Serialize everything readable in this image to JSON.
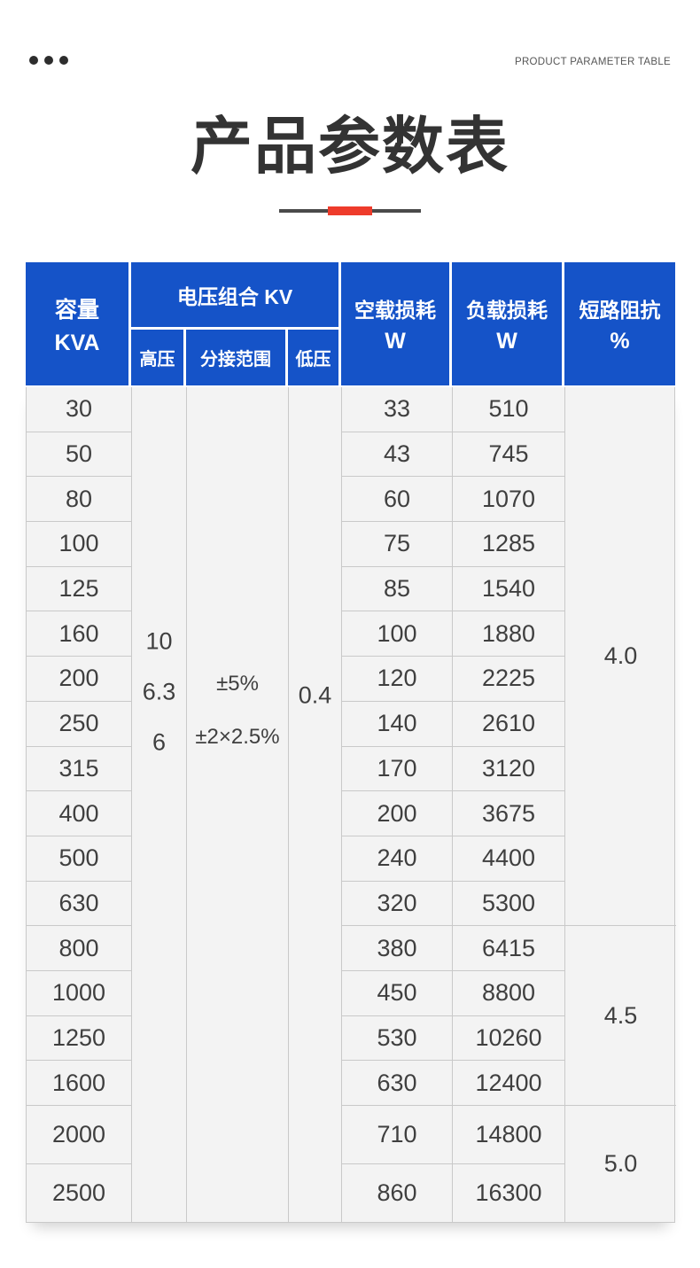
{
  "page": {
    "brand_label": "PRODUCT PARAMETER TABLE",
    "title": "产品参数表"
  },
  "colors": {
    "header_blue": "#1553c8",
    "accent_red": "#ee3b2b",
    "body_bg": "#f3f3f3",
    "grid_line": "#c9c9c9",
    "text_dark": "#3f3f3f"
  },
  "table": {
    "headers": {
      "capacity": "容量",
      "capacity_unit": "KVA",
      "voltage_group": "电压组合 KV",
      "hv": "高压",
      "tap_range": "分接范围",
      "lv": "低压",
      "no_load_loss": "空载损耗",
      "no_load_loss_unit": "W",
      "load_loss": "负载损耗",
      "load_loss_unit": "W",
      "impedance": "短路阻抗",
      "impedance_unit": "%"
    },
    "hv_values": [
      "10",
      "6.3",
      "6"
    ],
    "tap_range_values": [
      "±5%",
      "±2×2.5%"
    ],
    "lv_value": "0.4",
    "impedance_groups": [
      {
        "value": "4.0",
        "row_span": 12
      },
      {
        "value": "4.5",
        "row_span": 4
      },
      {
        "value": "5.0",
        "row_span": 2
      }
    ],
    "rows": [
      {
        "kva": "30",
        "no_load": "33",
        "load": "510"
      },
      {
        "kva": "50",
        "no_load": "43",
        "load": "745"
      },
      {
        "kva": "80",
        "no_load": "60",
        "load": "1070"
      },
      {
        "kva": "100",
        "no_load": "75",
        "load": "1285"
      },
      {
        "kva": "125",
        "no_load": "85",
        "load": "1540"
      },
      {
        "kva": "160",
        "no_load": "100",
        "load": "1880"
      },
      {
        "kva": "200",
        "no_load": "120",
        "load": "2225"
      },
      {
        "kva": "250",
        "no_load": "140",
        "load": "2610"
      },
      {
        "kva": "315",
        "no_load": "170",
        "load": "3120"
      },
      {
        "kva": "400",
        "no_load": "200",
        "load": "3675"
      },
      {
        "kva": "500",
        "no_load": "240",
        "load": "4400"
      },
      {
        "kva": "630",
        "no_load": "320",
        "load": "5300"
      },
      {
        "kva": "800",
        "no_load": "380",
        "load": "6415"
      },
      {
        "kva": "1000",
        "no_load": "450",
        "load": "8800"
      },
      {
        "kva": "1250",
        "no_load": "530",
        "load": "10260"
      },
      {
        "kva": "1600",
        "no_load": "630",
        "load": "12400"
      },
      {
        "kva": "2000",
        "no_load": "710",
        "load": "14800"
      },
      {
        "kva": "2500",
        "no_load": "860",
        "load": "16300"
      }
    ]
  }
}
